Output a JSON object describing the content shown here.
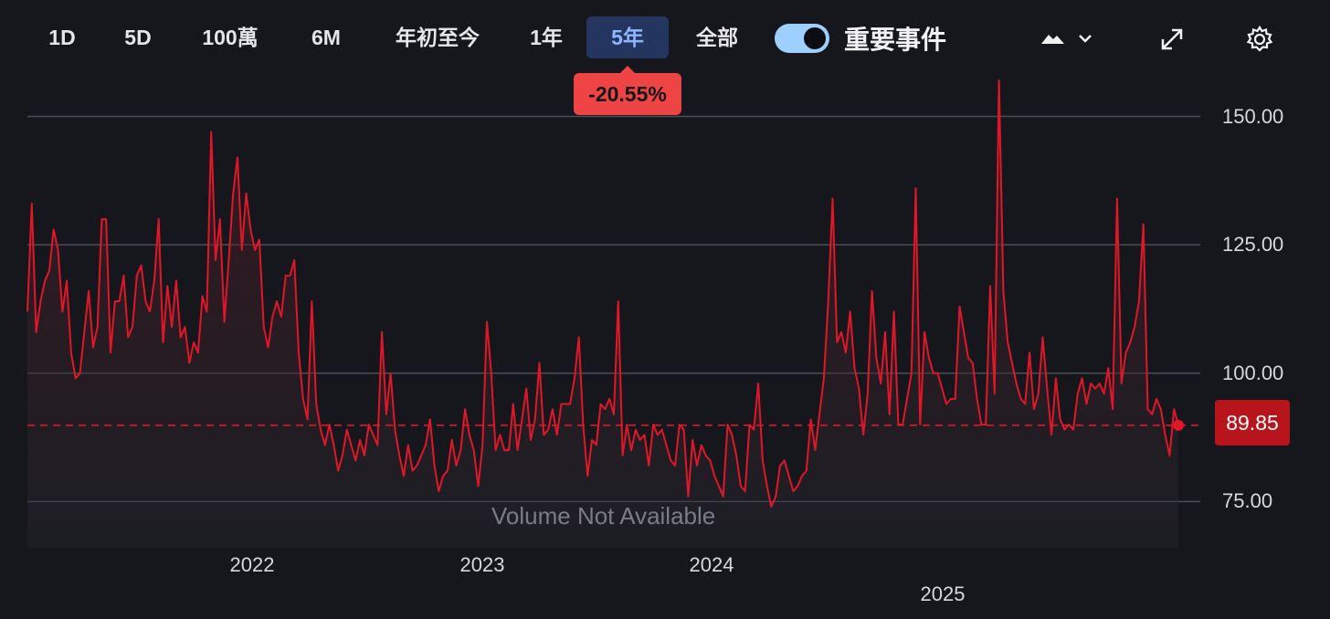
{
  "toolbar": {
    "ranges": [
      "1D",
      "5D",
      "100萬",
      "6M",
      "年初至今",
      "1年",
      "5年",
      "全部"
    ],
    "active_range": "5年",
    "key_events_label": "重要事件",
    "key_events_on": true,
    "change_badge": "-20.55%",
    "icons": [
      "chart-type-mountain-icon",
      "chevron-down-icon",
      "expand-icon",
      "gear-icon"
    ]
  },
  "colors": {
    "line": "#e01728",
    "badge": "#ef4444",
    "last_price_bg": "#b7151b",
    "active_tab_bg": "#24355f"
  },
  "last_price": "89.85",
  "volume_message": "Volume Not Available",
  "chart_data": {
    "type": "line",
    "y_ticks": [
      "150.00",
      "125.00",
      "100.00",
      "75.00"
    ],
    "ylim": [
      66,
      162
    ],
    "x_ticks": [
      "2022",
      "2023",
      "2024",
      "2025"
    ],
    "grid": true,
    "reference_line": 89.85,
    "series": [
      {
        "values": [
          112,
          133,
          108,
          114,
          118,
          120,
          128,
          124,
          112,
          118,
          104,
          99,
          100,
          108,
          116,
          105,
          109,
          130,
          130,
          104,
          114,
          114,
          119,
          107,
          109,
          119,
          121,
          114,
          112,
          118,
          130,
          106,
          117,
          109,
          118,
          107,
          109,
          102,
          106,
          104,
          115,
          112,
          147,
          122,
          130,
          110,
          122,
          135,
          142,
          124,
          135,
          128,
          124,
          126,
          109,
          105,
          111,
          114,
          111,
          119,
          119,
          122,
          104,
          95,
          91,
          114,
          94,
          89,
          86,
          90,
          86,
          81,
          84,
          89,
          86,
          83,
          87,
          84,
          90,
          88,
          86,
          108,
          92,
          100,
          89,
          84,
          80,
          86,
          81,
          82,
          84,
          86,
          91,
          82,
          77,
          80,
          81,
          87,
          82,
          85,
          93,
          88,
          85,
          78,
          86,
          110,
          100,
          85,
          88,
          85,
          85,
          94,
          85,
          91,
          97,
          87,
          91,
          102,
          88,
          89,
          93,
          88,
          94,
          94,
          94,
          99,
          107,
          90,
          80,
          87,
          86,
          94,
          93,
          95,
          92,
          114,
          84,
          90,
          85,
          89,
          87,
          88,
          82,
          90,
          88,
          89,
          86,
          83,
          82,
          90,
          89,
          76,
          87,
          82,
          86,
          84,
          83,
          80,
          78,
          76,
          90,
          88,
          84,
          78,
          77,
          90,
          89,
          98,
          83,
          78,
          74,
          76,
          82,
          83,
          80,
          77,
          78,
          80,
          81,
          91,
          85,
          92,
          99,
          114,
          134,
          106,
          108,
          104,
          112,
          101,
          97,
          88,
          96,
          116,
          103,
          98,
          108,
          92,
          112,
          90,
          90,
          95,
          100,
          136,
          90,
          108,
          103,
          100,
          100,
          97,
          94,
          95,
          95,
          113,
          108,
          103,
          102,
          95,
          90,
          90,
          117,
          96,
          157,
          116,
          106,
          102,
          98,
          95,
          94,
          104,
          93,
          96,
          107,
          97,
          88,
          99,
          91,
          89,
          90,
          89,
          96,
          99,
          94,
          98,
          97,
          98,
          96,
          101,
          93,
          134,
          98,
          104,
          106,
          109,
          114,
          129,
          93,
          92,
          95,
          93,
          88,
          84,
          93,
          89.85
        ]
      }
    ]
  }
}
